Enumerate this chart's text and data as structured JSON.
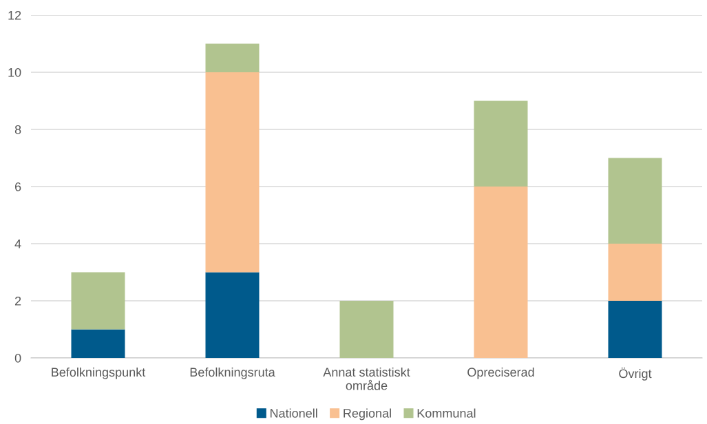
{
  "chart_data": {
    "type": "bar",
    "stacked": true,
    "categories": [
      "Befolkningspunkt",
      "Befolkningsruta",
      "Annat statistiskt\nområde",
      "Opreciserad",
      "Övrigt"
    ],
    "series": [
      {
        "name": "Nationell",
        "color": "#005a8c",
        "values": [
          1,
          3,
          0,
          0,
          2
        ]
      },
      {
        "name": "Regional",
        "color": "#f9c091",
        "values": [
          0,
          7,
          0,
          6,
          2
        ]
      },
      {
        "name": "Kommunal",
        "color": "#b1c48f",
        "values": [
          2,
          1,
          2,
          3,
          3
        ]
      }
    ],
    "ylim": [
      0,
      12
    ],
    "yticks": [
      0,
      2,
      4,
      6,
      8,
      10,
      12
    ],
    "grid": "y",
    "legend": "bottom"
  }
}
